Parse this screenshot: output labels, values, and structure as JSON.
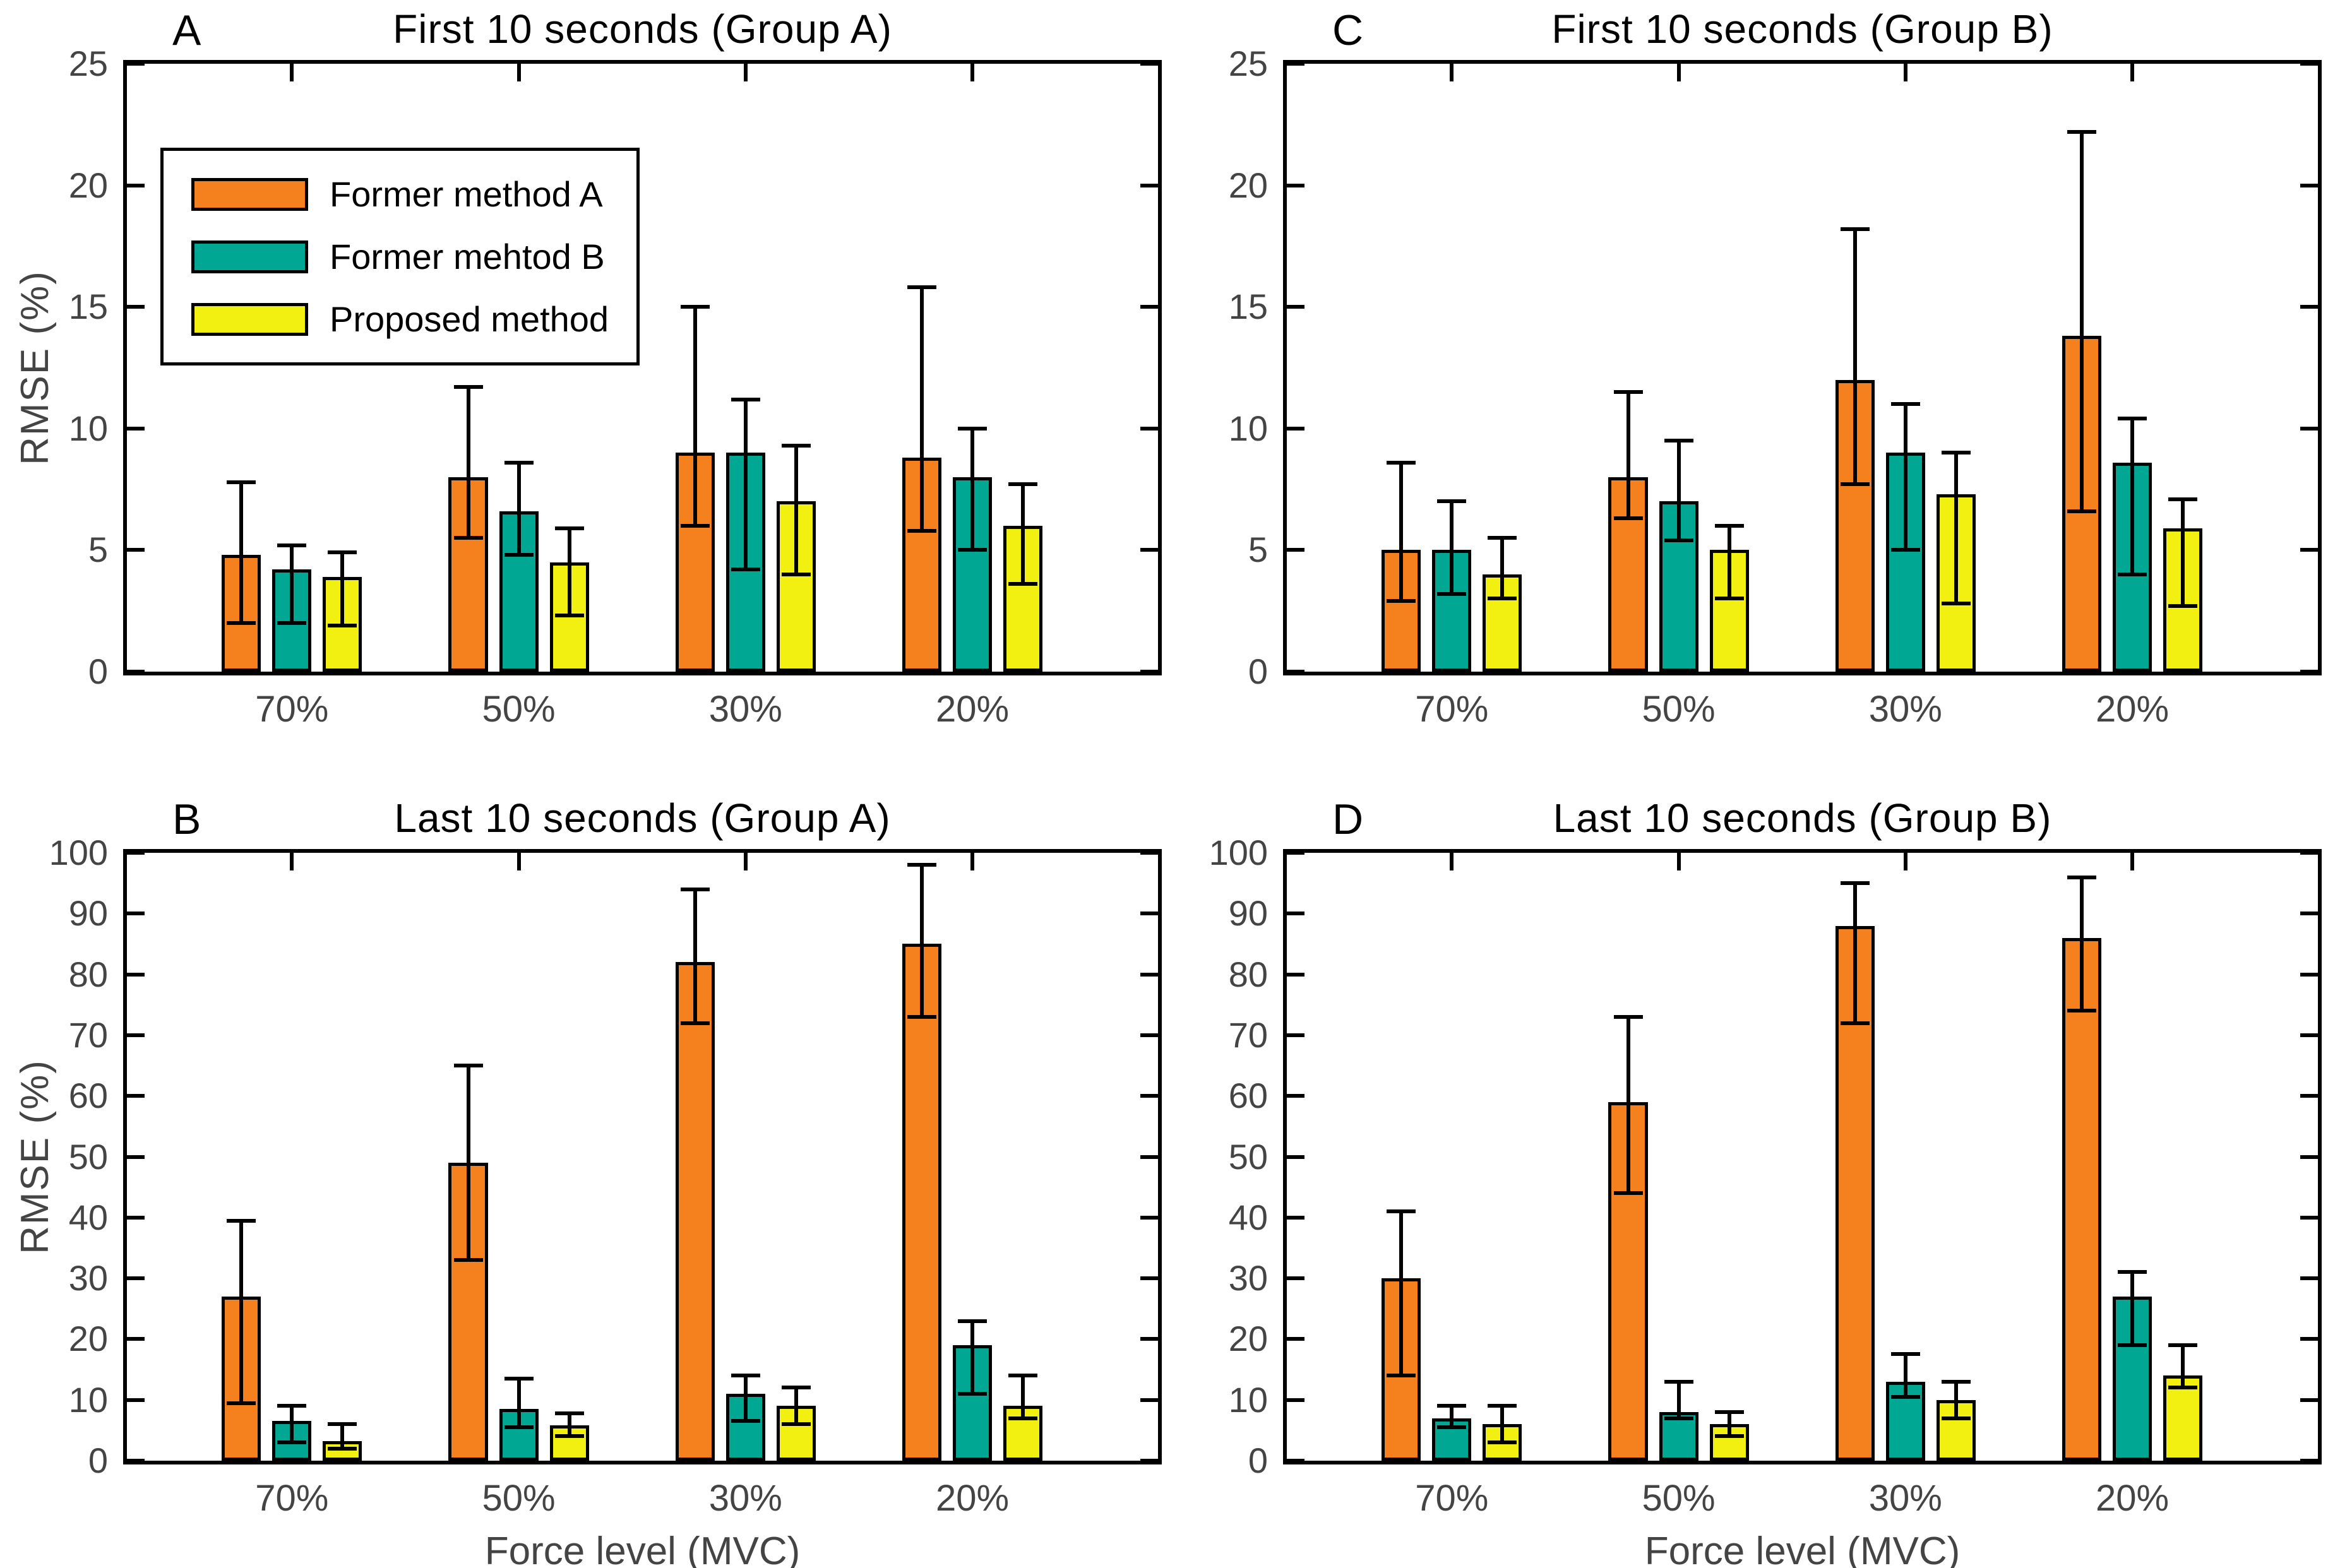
{
  "figure": {
    "background": "#ffffff",
    "axis_color": "#000000",
    "tick_label_color": "#444444",
    "axis_label_color": "#444444"
  },
  "legend": {
    "items": [
      {
        "label": "Former method A",
        "color": "#F5801E",
        "icon": "orange-swatch"
      },
      {
        "label": "Former mehtod B",
        "color": "#00A793",
        "icon": "teal-swatch"
      },
      {
        "label": "Proposed method",
        "color": "#F2F011",
        "icon": "yellow-swatch"
      }
    ]
  },
  "chart_data": [
    {
      "type": "bar",
      "panel": "A",
      "title": "First 10 seconds (Group A)",
      "categories": [
        "70%",
        "50%",
        "30%",
        "20%"
      ],
      "ylim": [
        0,
        25
      ],
      "yticks": [
        0,
        5,
        10,
        15,
        20,
        25
      ],
      "xlabel": "",
      "ylabel": "RMSE  (%)",
      "grid": false,
      "legend_position": "upper-left-inside",
      "show_legend": true,
      "series": [
        {
          "name": "Former method A",
          "color": "#F5801E",
          "values": [
            4.8,
            8.0,
            9.0,
            8.8
          ],
          "err_lo": [
            2.0,
            5.5,
            6.0,
            5.8
          ],
          "err_hi": [
            7.8,
            11.7,
            15.0,
            15.8
          ]
        },
        {
          "name": "Former mehtod B",
          "color": "#00A793",
          "values": [
            4.2,
            6.6,
            9.0,
            8.0
          ],
          "err_lo": [
            2.0,
            4.8,
            4.2,
            5.0
          ],
          "err_hi": [
            5.2,
            8.6,
            11.2,
            10.0
          ]
        },
        {
          "name": "Proposed method",
          "color": "#F2F011",
          "values": [
            3.9,
            4.5,
            7.0,
            6.0
          ],
          "err_lo": [
            1.9,
            2.3,
            4.0,
            3.6
          ],
          "err_hi": [
            4.9,
            5.9,
            9.3,
            7.7
          ]
        }
      ]
    },
    {
      "type": "bar",
      "panel": "C",
      "title": "First 10 seconds (Group B)",
      "categories": [
        "70%",
        "50%",
        "30%",
        "20%"
      ],
      "ylim": [
        0,
        25
      ],
      "yticks": [
        0,
        5,
        10,
        15,
        20,
        25
      ],
      "xlabel": "",
      "ylabel": "",
      "grid": false,
      "show_legend": false,
      "series": [
        {
          "name": "Former method A",
          "color": "#F5801E",
          "values": [
            5.0,
            8.0,
            12.0,
            13.8
          ],
          "err_lo": [
            2.9,
            6.3,
            7.7,
            6.6
          ],
          "err_hi": [
            8.6,
            11.5,
            18.2,
            22.2
          ]
        },
        {
          "name": "Former mehtod B",
          "color": "#00A793",
          "values": [
            5.0,
            7.0,
            9.0,
            8.6
          ],
          "err_lo": [
            3.2,
            5.4,
            5.0,
            4.0
          ],
          "err_hi": [
            7.0,
            9.5,
            11.0,
            10.4
          ]
        },
        {
          "name": "Proposed method",
          "color": "#F2F011",
          "values": [
            4.0,
            5.0,
            7.3,
            5.9
          ],
          "err_lo": [
            3.0,
            3.0,
            2.8,
            2.7
          ],
          "err_hi": [
            5.5,
            6.0,
            9.0,
            7.1
          ]
        }
      ]
    },
    {
      "type": "bar",
      "panel": "B",
      "title": "Last 10 seconds (Group A)",
      "categories": [
        "70%",
        "50%",
        "30%",
        "20%"
      ],
      "ylim": [
        0,
        100
      ],
      "yticks": [
        0,
        10,
        20,
        30,
        40,
        50,
        60,
        70,
        80,
        90,
        100
      ],
      "xlabel": "Force level (MVC)",
      "ylabel": "RMSE  (%)",
      "grid": false,
      "show_legend": false,
      "series": [
        {
          "name": "Former method A",
          "color": "#F5801E",
          "values": [
            27,
            49,
            82,
            85
          ],
          "err_lo": [
            9.5,
            33,
            72,
            73
          ],
          "err_hi": [
            39.5,
            65,
            94,
            98
          ]
        },
        {
          "name": "Former mehtod B",
          "color": "#00A793",
          "values": [
            6.5,
            8.5,
            11,
            19
          ],
          "err_lo": [
            3,
            5.5,
            6.5,
            11
          ],
          "err_hi": [
            9,
            13.5,
            14,
            23
          ]
        },
        {
          "name": "Proposed method",
          "color": "#F2F011",
          "values": [
            3.2,
            5.8,
            9,
            9
          ],
          "err_lo": [
            2,
            4,
            6,
            7
          ],
          "err_hi": [
            6,
            7.8,
            12,
            14
          ]
        }
      ]
    },
    {
      "type": "bar",
      "panel": "D",
      "title": "Last 10 seconds (Group B)",
      "categories": [
        "70%",
        "50%",
        "30%",
        "20%"
      ],
      "ylim": [
        0,
        100
      ],
      "yticks": [
        0,
        10,
        20,
        30,
        40,
        50,
        60,
        70,
        80,
        90,
        100
      ],
      "xlabel": "Force level (MVC)",
      "ylabel": "",
      "grid": false,
      "show_legend": false,
      "series": [
        {
          "name": "Former method A",
          "color": "#F5801E",
          "values": [
            30,
            59,
            88,
            86
          ],
          "err_lo": [
            14,
            44,
            72,
            74
          ],
          "err_hi": [
            41,
            73,
            95,
            96
          ]
        },
        {
          "name": "Former mehtod B",
          "color": "#00A793",
          "values": [
            7,
            8,
            13,
            27
          ],
          "err_lo": [
            5.5,
            7,
            10.5,
            19
          ],
          "err_hi": [
            9,
            13,
            17.5,
            31
          ]
        },
        {
          "name": "Proposed method",
          "color": "#F2F011",
          "values": [
            6,
            6,
            10,
            14
          ],
          "err_lo": [
            3,
            4,
            7,
            12
          ],
          "err_hi": [
            9,
            8,
            13,
            19
          ]
        }
      ]
    }
  ]
}
